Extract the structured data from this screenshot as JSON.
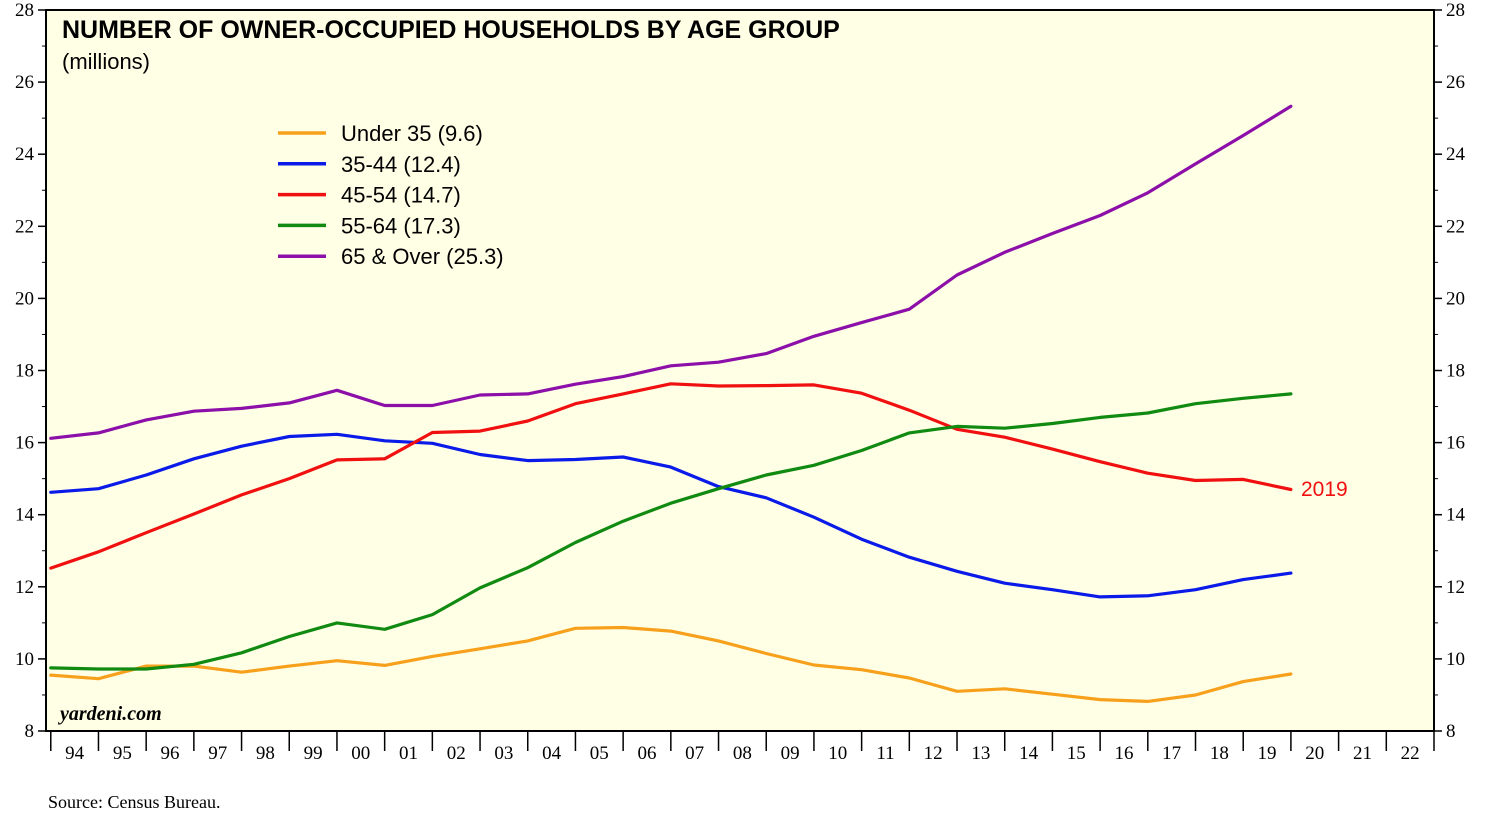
{
  "chart_data": {
    "type": "line",
    "title": "NUMBER OF OWNER-OCCUPIED HOUSEHOLDS BY AGE GROUP",
    "subtitle": "(millions)",
    "ylim": [
      8,
      28
    ],
    "y_ticks": [
      8,
      10,
      12,
      14,
      16,
      18,
      20,
      22,
      24,
      26,
      28
    ],
    "xlim": [
      1994,
      2023
    ],
    "x_tick_labels": [
      "94",
      "95",
      "96",
      "97",
      "98",
      "99",
      "00",
      "01",
      "02",
      "03",
      "04",
      "05",
      "06",
      "07",
      "08",
      "09",
      "10",
      "11",
      "12",
      "13",
      "14",
      "15",
      "16",
      "17",
      "18",
      "19",
      "20",
      "21",
      "22"
    ],
    "x": [
      1994,
      1995,
      1996,
      1997,
      1998,
      1999,
      2000,
      2001,
      2002,
      2003,
      2004,
      2005,
      2006,
      2007,
      2008,
      2009,
      2010,
      2011,
      2012,
      2013,
      2014,
      2015,
      2016,
      2017,
      2018,
      2019,
      2020
    ],
    "series": [
      {
        "name": "Under 35 (9.6)",
        "color": "#f7a01c",
        "values": [
          9.55,
          9.45,
          9.8,
          9.8,
          9.63,
          9.8,
          9.95,
          9.82,
          10.07,
          10.28,
          10.5,
          10.85,
          10.87,
          10.77,
          10.5,
          10.15,
          9.83,
          9.7,
          9.47,
          9.1,
          9.17,
          9.02,
          8.87,
          8.82,
          9.0,
          9.37,
          9.58
        ]
      },
      {
        "name": "35-44 (12.4)",
        "color": "#0a1ae8",
        "values": [
          14.62,
          14.72,
          15.1,
          15.55,
          15.9,
          16.17,
          16.23,
          16.05,
          15.98,
          15.67,
          15.5,
          15.53,
          15.6,
          15.32,
          14.78,
          14.47,
          13.93,
          13.32,
          12.82,
          12.43,
          12.1,
          11.92,
          11.72,
          11.75,
          11.92,
          12.2,
          12.38
        ]
      },
      {
        "name": "45-54 (14.7)",
        "color": "#f01010",
        "values": [
          12.52,
          12.97,
          13.5,
          14.02,
          14.55,
          15.0,
          15.52,
          15.55,
          16.28,
          16.32,
          16.6,
          17.08,
          17.35,
          17.63,
          17.57,
          17.58,
          17.6,
          17.37,
          16.9,
          16.37,
          16.15,
          15.82,
          15.47,
          15.15,
          14.95,
          14.98,
          14.7
        ]
      },
      {
        "name": "55-64 (17.3)",
        "color": "#108a10",
        "values": [
          9.75,
          9.72,
          9.72,
          9.85,
          10.17,
          10.62,
          11.0,
          10.82,
          11.23,
          11.97,
          12.53,
          13.23,
          13.82,
          14.32,
          14.72,
          15.1,
          15.37,
          15.78,
          16.27,
          16.45,
          16.4,
          16.53,
          16.7,
          16.82,
          17.08,
          17.23,
          17.35
        ]
      },
      {
        "name": "65 & Over (25.3)",
        "color": "#8b0fa8",
        "values": [
          16.12,
          16.27,
          16.63,
          16.87,
          16.95,
          17.1,
          17.45,
          17.03,
          17.03,
          17.32,
          17.35,
          17.62,
          17.83,
          18.13,
          18.23,
          18.47,
          18.95,
          19.33,
          19.7,
          20.65,
          21.28,
          21.8,
          22.3,
          22.93,
          23.73,
          24.52,
          25.33
        ]
      }
    ],
    "annotation": {
      "text": "2019",
      "series": "45-54 (14.7)",
      "color": "#f01010"
    },
    "legend_position": "top-left",
    "grid": false,
    "background": "#ffffe6",
    "watermark": "yardeni.com",
    "source": "Source: Census Bureau."
  }
}
